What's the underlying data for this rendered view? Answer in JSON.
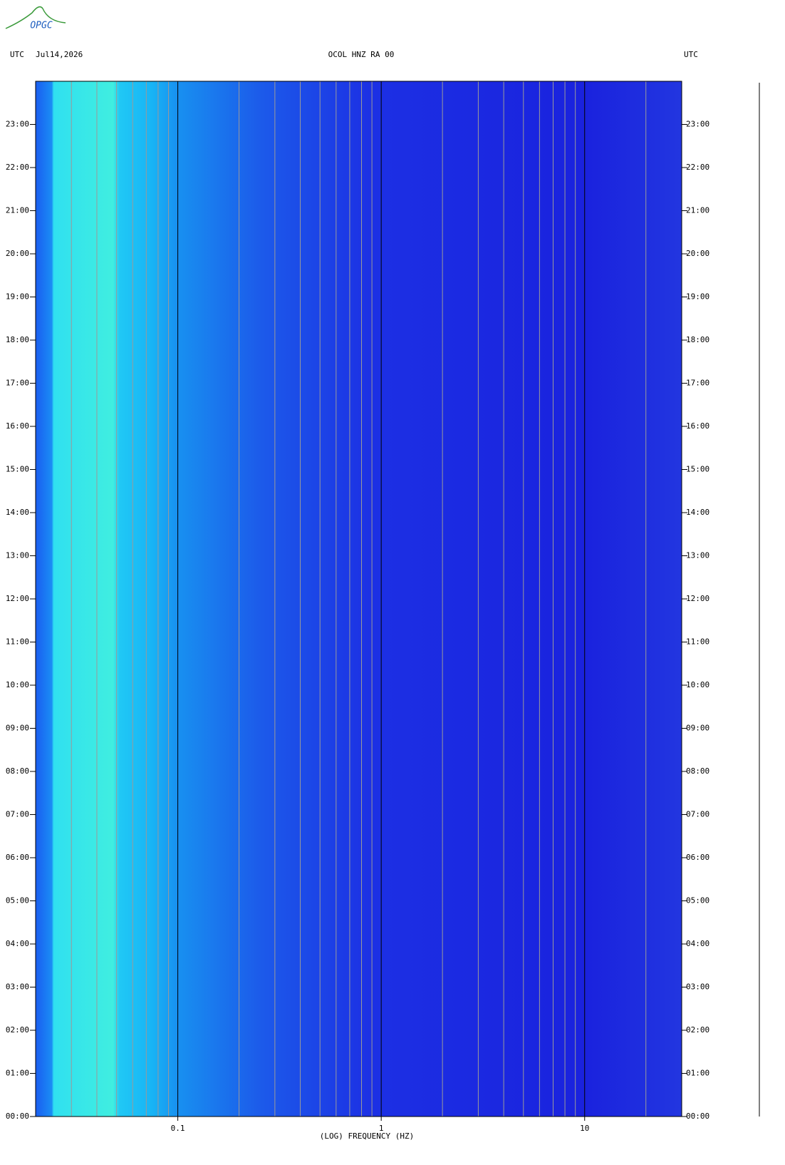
{
  "chart_data": {
    "type": "spectrogram",
    "logo": "OPGC",
    "left_label": "UTC",
    "date": "Jul14,2026",
    "title": "OCOL HNZ RA 00",
    "right_label": "UTC",
    "x_label": "(LOG) FREQUENCY (HZ)",
    "xscale": "log",
    "xlim": [
      0.02,
      30
    ],
    "xticks": [
      0.1,
      1,
      10
    ],
    "xgrid": [
      0.02,
      0.03,
      0.04,
      0.05,
      0.06,
      0.07,
      0.08,
      0.09,
      0.2,
      0.3,
      0.4,
      0.5,
      0.6,
      0.7,
      0.8,
      0.9,
      2,
      3,
      4,
      5,
      6,
      7,
      8,
      9,
      20
    ],
    "ylim": [
      0,
      24
    ],
    "yticks": [
      {
        "value": 0,
        "label": "00:00"
      },
      {
        "value": 1,
        "label": "01:00"
      },
      {
        "value": 2,
        "label": "02:00"
      },
      {
        "value": 3,
        "label": "03:00"
      },
      {
        "value": 4,
        "label": "04:00"
      },
      {
        "value": 5,
        "label": "05:00"
      },
      {
        "value": 6,
        "label": "06:00"
      },
      {
        "value": 7,
        "label": "07:00"
      },
      {
        "value": 8,
        "label": "08:00"
      },
      {
        "value": 9,
        "label": "09:00"
      },
      {
        "value": 10,
        "label": "10:00"
      },
      {
        "value": 11,
        "label": "11:00"
      },
      {
        "value": 12,
        "label": "12:00"
      },
      {
        "value": 13,
        "label": "13:00"
      },
      {
        "value": 14,
        "label": "14:00"
      },
      {
        "value": 15,
        "label": "15:00"
      },
      {
        "value": 16,
        "label": "16:00"
      },
      {
        "value": 17,
        "label": "17:00"
      },
      {
        "value": 18,
        "label": "18:00"
      },
      {
        "value": 19,
        "label": "19:00"
      },
      {
        "value": 20,
        "label": "20:00"
      },
      {
        "value": 21,
        "label": "21:00"
      },
      {
        "value": 22,
        "label": "22:00"
      },
      {
        "value": 23,
        "label": "23:00"
      }
    ],
    "decade_grid_color": "#000000",
    "minor_grid_color": "#9a9a9a"
  }
}
